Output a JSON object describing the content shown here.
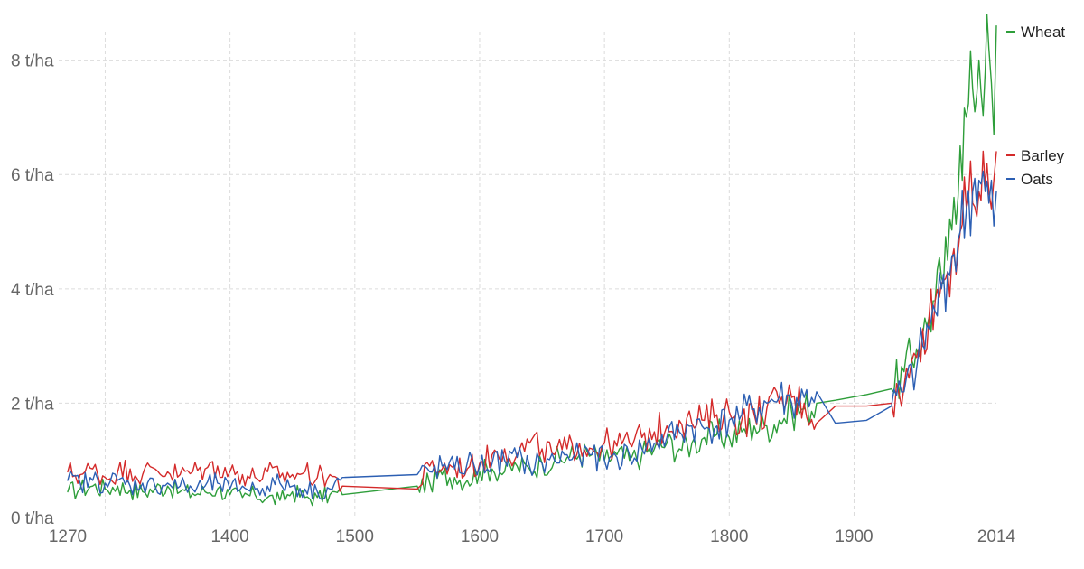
{
  "chart_data": {
    "type": "line",
    "title": "",
    "xlabel": "",
    "ylabel": "",
    "x_ticks": [
      "1270",
      "1400",
      "1500",
      "1600",
      "1700",
      "1800",
      "1900",
      "2014"
    ],
    "y_ticks": [
      "0 t/ha",
      "2 t/ha",
      "4 t/ha",
      "6 t/ha",
      "8 t/ha"
    ],
    "xlim": [
      1270,
      2014
    ],
    "ylim": [
      0,
      8.5
    ],
    "grid": true,
    "legend": "right, at line ends",
    "series": [
      {
        "name": "Wheat",
        "color": "#2e9e3a",
        "points": [
          [
            1270,
            0.45
          ],
          [
            1280,
            0.5
          ],
          [
            1290,
            0.55
          ],
          [
            1300,
            0.5
          ],
          [
            1310,
            0.55
          ],
          [
            1320,
            0.48
          ],
          [
            1330,
            0.45
          ],
          [
            1340,
            0.5
          ],
          [
            1350,
            0.55
          ],
          [
            1360,
            0.45
          ],
          [
            1370,
            0.42
          ],
          [
            1380,
            0.45
          ],
          [
            1390,
            0.5
          ],
          [
            1400,
            0.4
          ],
          [
            1410,
            0.35
          ],
          [
            1420,
            0.4
          ],
          [
            1430,
            0.35
          ],
          [
            1440,
            0.3
          ],
          [
            1450,
            0.45
          ],
          [
            1460,
            0.35
          ],
          [
            1470,
            0.35
          ],
          [
            1480,
            0.4
          ],
          [
            1490,
            0.4
          ],
          [
            1550,
            0.55
          ],
          [
            1560,
            0.6
          ],
          [
            1570,
            0.75
          ],
          [
            1580,
            0.7
          ],
          [
            1590,
            0.65
          ],
          [
            1600,
            0.8
          ],
          [
            1610,
            0.85
          ],
          [
            1620,
            0.8
          ],
          [
            1630,
            0.9
          ],
          [
            1640,
            0.85
          ],
          [
            1650,
            0.95
          ],
          [
            1660,
            1.0
          ],
          [
            1670,
            1.05
          ],
          [
            1680,
            1.1
          ],
          [
            1690,
            1.1
          ],
          [
            1700,
            1.0
          ],
          [
            1710,
            1.1
          ],
          [
            1720,
            1.0
          ],
          [
            1730,
            1.1
          ],
          [
            1740,
            1.2
          ],
          [
            1750,
            1.3
          ],
          [
            1760,
            1.2
          ],
          [
            1770,
            1.3
          ],
          [
            1780,
            1.4
          ],
          [
            1790,
            1.45
          ],
          [
            1800,
            1.4
          ],
          [
            1810,
            1.5
          ],
          [
            1820,
            1.6
          ],
          [
            1830,
            1.6
          ],
          [
            1840,
            1.7
          ],
          [
            1850,
            1.85
          ],
          [
            1860,
            1.9
          ],
          [
            1870,
            2.0
          ],
          [
            1885,
            2.05
          ],
          [
            1910,
            2.15
          ],
          [
            1930,
            2.25
          ],
          [
            1940,
            2.55
          ],
          [
            1950,
            2.95
          ],
          [
            1955,
            3.2
          ],
          [
            1960,
            3.5
          ],
          [
            1965,
            3.8
          ],
          [
            1970,
            4.2
          ],
          [
            1975,
            4.5
          ],
          [
            1980,
            5.6
          ],
          [
            1985,
            6.5
          ],
          [
            1990,
            7.0
          ],
          [
            1995,
            7.5
          ],
          [
            2000,
            8.0
          ],
          [
            2005,
            7.8
          ],
          [
            2008,
            8.2
          ],
          [
            2010,
            7.6
          ],
          [
            2012,
            6.7
          ],
          [
            2014,
            8.6
          ]
        ]
      },
      {
        "name": "Barley",
        "color": "#d42a2a",
        "points": [
          [
            1270,
            0.8
          ],
          [
            1280,
            0.75
          ],
          [
            1290,
            0.85
          ],
          [
            1300,
            0.7
          ],
          [
            1310,
            0.8
          ],
          [
            1320,
            0.85
          ],
          [
            1330,
            0.75
          ],
          [
            1340,
            0.85
          ],
          [
            1350,
            0.8
          ],
          [
            1360,
            0.75
          ],
          [
            1370,
            0.8
          ],
          [
            1380,
            0.85
          ],
          [
            1390,
            0.9
          ],
          [
            1400,
            0.8
          ],
          [
            1410,
            0.75
          ],
          [
            1420,
            0.7
          ],
          [
            1430,
            0.8
          ],
          [
            1440,
            0.7
          ],
          [
            1450,
            0.75
          ],
          [
            1460,
            0.8
          ],
          [
            1470,
            0.7
          ],
          [
            1480,
            0.75
          ],
          [
            1490,
            0.55
          ],
          [
            1550,
            0.5
          ],
          [
            1560,
            0.9
          ],
          [
            1570,
            0.85
          ],
          [
            1580,
            0.9
          ],
          [
            1590,
            0.85
          ],
          [
            1600,
            0.95
          ],
          [
            1610,
            1.1
          ],
          [
            1620,
            1.2
          ],
          [
            1630,
            1.1
          ],
          [
            1640,
            1.3
          ],
          [
            1650,
            1.2
          ],
          [
            1660,
            1.1
          ],
          [
            1670,
            1.2
          ],
          [
            1680,
            1.3
          ],
          [
            1690,
            1.2
          ],
          [
            1700,
            1.3
          ],
          [
            1710,
            1.25
          ],
          [
            1720,
            1.3
          ],
          [
            1730,
            1.4
          ],
          [
            1740,
            1.5
          ],
          [
            1750,
            1.6
          ],
          [
            1760,
            1.7
          ],
          [
            1770,
            1.65
          ],
          [
            1780,
            1.7
          ],
          [
            1790,
            1.8
          ],
          [
            1800,
            1.85
          ],
          [
            1810,
            1.7
          ],
          [
            1820,
            1.8
          ],
          [
            1830,
            1.9
          ],
          [
            1840,
            2.0
          ],
          [
            1850,
            2.1
          ],
          [
            1860,
            2.0
          ],
          [
            1870,
            1.65
          ],
          [
            1885,
            1.95
          ],
          [
            1910,
            1.95
          ],
          [
            1930,
            2.0
          ],
          [
            1940,
            2.3
          ],
          [
            1950,
            2.8
          ],
          [
            1955,
            3.3
          ],
          [
            1960,
            3.5
          ],
          [
            1965,
            3.8
          ],
          [
            1970,
            4.1
          ],
          [
            1975,
            4.3
          ],
          [
            1980,
            4.7
          ],
          [
            1985,
            5.0
          ],
          [
            1990,
            5.4
          ],
          [
            1995,
            5.5
          ],
          [
            2000,
            5.7
          ],
          [
            2005,
            5.8
          ],
          [
            2008,
            5.7
          ],
          [
            2010,
            5.4
          ],
          [
            2012,
            5.9
          ],
          [
            2014,
            6.4
          ]
        ]
      },
      {
        "name": "Oats",
        "color": "#2c5fb3",
        "points": [
          [
            1270,
            0.65
          ],
          [
            1280,
            0.6
          ],
          [
            1290,
            0.65
          ],
          [
            1300,
            0.6
          ],
          [
            1310,
            0.65
          ],
          [
            1320,
            0.55
          ],
          [
            1330,
            0.6
          ],
          [
            1340,
            0.55
          ],
          [
            1350,
            0.6
          ],
          [
            1360,
            0.55
          ],
          [
            1370,
            0.5
          ],
          [
            1380,
            0.55
          ],
          [
            1390,
            0.6
          ],
          [
            1400,
            0.5
          ],
          [
            1410,
            0.55
          ],
          [
            1420,
            0.5
          ],
          [
            1430,
            0.55
          ],
          [
            1440,
            0.6
          ],
          [
            1450,
            0.55
          ],
          [
            1460,
            0.5
          ],
          [
            1470,
            0.45
          ],
          [
            1480,
            0.5
          ],
          [
            1490,
            0.7
          ],
          [
            1550,
            0.75
          ],
          [
            1560,
            0.8
          ],
          [
            1570,
            0.9
          ],
          [
            1580,
            0.85
          ],
          [
            1590,
            0.95
          ],
          [
            1600,
            0.9
          ],
          [
            1610,
            0.95
          ],
          [
            1620,
            1.0
          ],
          [
            1630,
            1.05
          ],
          [
            1640,
            0.9
          ],
          [
            1650,
            0.95
          ],
          [
            1660,
            1.0
          ],
          [
            1670,
            1.1
          ],
          [
            1680,
            1.05
          ],
          [
            1690,
            1.1
          ],
          [
            1700,
            1.0
          ],
          [
            1710,
            1.05
          ],
          [
            1720,
            1.1
          ],
          [
            1730,
            1.2
          ],
          [
            1740,
            1.3
          ],
          [
            1750,
            1.4
          ],
          [
            1760,
            1.5
          ],
          [
            1770,
            1.6
          ],
          [
            1780,
            1.55
          ],
          [
            1790,
            1.6
          ],
          [
            1800,
            1.7
          ],
          [
            1810,
            1.8
          ],
          [
            1820,
            1.9
          ],
          [
            1830,
            2.0
          ],
          [
            1840,
            2.1
          ],
          [
            1850,
            2.0
          ],
          [
            1860,
            2.1
          ],
          [
            1870,
            2.2
          ],
          [
            1885,
            1.65
          ],
          [
            1910,
            1.7
          ],
          [
            1930,
            1.95
          ],
          [
            1940,
            2.2
          ],
          [
            1950,
            2.6
          ],
          [
            1955,
            3.0
          ],
          [
            1960,
            3.3
          ],
          [
            1965,
            3.6
          ],
          [
            1970,
            4.0
          ],
          [
            1975,
            4.3
          ],
          [
            1980,
            4.6
          ],
          [
            1985,
            5.0
          ],
          [
            1990,
            5.4
          ],
          [
            1995,
            5.7
          ],
          [
            2000,
            5.9
          ],
          [
            2005,
            5.7
          ],
          [
            2008,
            5.5
          ],
          [
            2010,
            5.9
          ],
          [
            2012,
            5.1
          ],
          [
            2014,
            5.7
          ]
        ]
      }
    ]
  }
}
